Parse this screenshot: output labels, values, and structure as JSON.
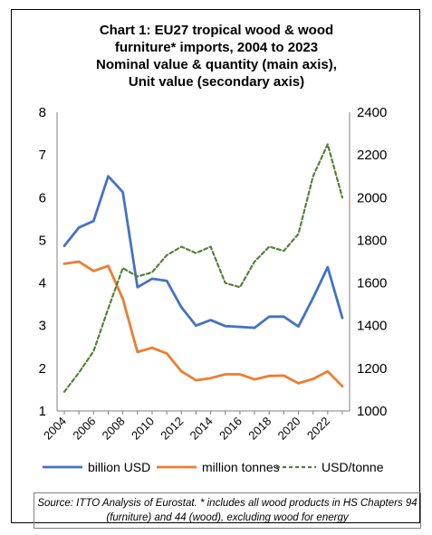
{
  "chart_data": {
    "type": "line",
    "title_lines": [
      "Chart 1: EU27 tropical wood & wood",
      "furniture* imports, 2004 to 2023",
      "Nominal value & quantity (main axis),",
      "Unit value (secondary axis)"
    ],
    "x": [
      2004,
      2005,
      2006,
      2007,
      2008,
      2009,
      2010,
      2011,
      2012,
      2013,
      2014,
      2015,
      2016,
      2017,
      2018,
      2019,
      2020,
      2021,
      2022,
      2023
    ],
    "x_tick_labels": [
      "2004",
      "2006",
      "2008",
      "2010",
      "2012",
      "2014",
      "2016",
      "2018",
      "2020",
      "2022"
    ],
    "y_left": {
      "min": 1,
      "max": 8,
      "ticks": [
        "1",
        "2",
        "3",
        "4",
        "5",
        "6",
        "7",
        "8"
      ]
    },
    "y_right": {
      "min": 1000,
      "max": 2400,
      "ticks": [
        "1000",
        "1200",
        "1400",
        "1600",
        "1800",
        "2000",
        "2200",
        "2400"
      ]
    },
    "series": [
      {
        "name": "billion USD",
        "axis": "left",
        "color": "#4472C4",
        "style": "solid",
        "values": [
          4.87,
          5.3,
          5.45,
          6.5,
          6.13,
          3.9,
          4.1,
          4.05,
          3.43,
          3.0,
          3.13,
          2.99,
          2.97,
          2.95,
          3.21,
          3.21,
          2.98,
          3.65,
          4.37,
          3.18
        ]
      },
      {
        "name": "million tonnes",
        "axis": "left",
        "color": "#ED7D31",
        "style": "solid",
        "values": [
          4.45,
          4.5,
          4.28,
          4.4,
          3.63,
          2.38,
          2.48,
          2.35,
          1.93,
          1.72,
          1.77,
          1.86,
          1.86,
          1.74,
          1.82,
          1.83,
          1.65,
          1.75,
          1.93,
          1.58
        ]
      },
      {
        "name": "USD/tonne",
        "axis": "right",
        "color": "#548235",
        "style": "dashed",
        "values": [
          1090,
          1180,
          1280,
          1480,
          1670,
          1630,
          1650,
          1730,
          1770,
          1740,
          1770,
          1600,
          1580,
          1700,
          1770,
          1750,
          1830,
          2100,
          2250,
          2000
        ]
      }
    ],
    "legend_position": "bottom",
    "grid": false
  },
  "source_note": "Source: ITTO Analysis of Eurostat. * includes all wood products in HS Chapters 94 (furniture) and 44 (wood), excluding wood for energy"
}
